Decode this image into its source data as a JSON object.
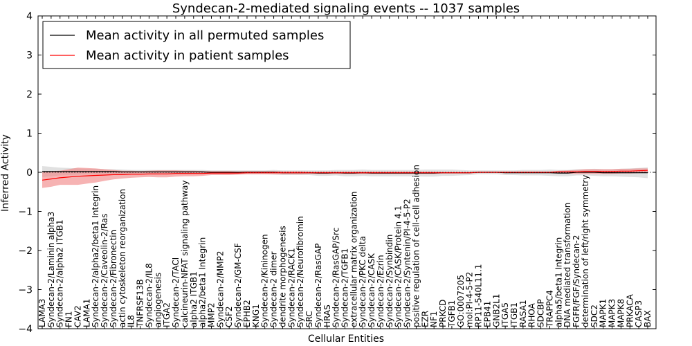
{
  "chart_data": {
    "type": "line",
    "title": "Syndecan-2-mediated signaling events -- 1037 samples",
    "xlabel": "Cellular Entities",
    "ylabel": "Inferred Activity",
    "ylim": [
      -4,
      4
    ],
    "yticks": [
      "4",
      "3",
      "2",
      "1",
      "0",
      "−1",
      "−2",
      "−3",
      "−4"
    ],
    "ytick_values": [
      4,
      3,
      2,
      1,
      0,
      -1,
      -2,
      -3,
      -4
    ],
    "legend_position": "top-left",
    "categories": [
      "LAMA3",
      "Syndecan-2/Laminin alpha3",
      "Syndecan-2/alpha2 ITGB1",
      "FN1",
      "CAV2",
      "LAMA1",
      "Syndecan-2/alpha2/beta1 Integrin",
      "Syndecan-2/Caveolin-2/Ras",
      "Syndecan-2/Fibronectin",
      "actin cytoskeleton reorganization",
      "IL8",
      "TNFRSF13B",
      "Syndecan-2/IL8",
      "angiogenesis",
      "ITGA2",
      "Syndecan-2/TACI",
      "calcineurin-NFAT signaling pathway",
      "alpha2 ITGB1",
      "alpha2/beta1 Integrin",
      "MMP2",
      "Syndecan-2/MMP2",
      "CSF2",
      "Syndecan-2/GM-CSF",
      "EPHB2",
      "KNG1",
      "Syndecan-2/Kininogen",
      "Syndecan-2 dimer",
      "dendrite morphogenesis",
      "Syndecan-2/RACK1",
      "Syndecan-2/Neurofibromin",
      "SRC",
      "Syndecan-2/RasGAP",
      "HRAS",
      "Syndecan-2/RasGAP/Src",
      "Syndecan-2/TGFB1",
      "extracellular matrix organization",
      "Syndecan-2/PKC delta",
      "Syndecan-2/CASK",
      "Syndecan-2/Ezrin",
      "Syndecan-2/Synbindin",
      "Syndecan-2/CASK/Protein 4.1",
      "Syndecan-2/Syntenin/PI-4-5-P2",
      "positive regulation of cell-cell adhesion",
      "EZR",
      "NF1",
      "PRKCD",
      "TGFB1",
      "GO:0007205",
      "mol:PI-4-5-P2",
      "RP11-540L11.1",
      "EPB41",
      "GNB2L1",
      "ITGA5",
      "ITGB1",
      "RASA1",
      "RHOA",
      "SDCBP",
      "TRAPPC4",
      "alpha5/beta1 Integrin",
      "DNA mediated transformation",
      "FGFR/FGF/Syndecan-2",
      "determination of left/right symmetry",
      "SDC2",
      "MAPK1",
      "MAPK3",
      "MAPK8",
      "PRKACA",
      "CASP3",
      "BAX"
    ],
    "series": [
      {
        "name": "Mean activity in all permuted samples",
        "color": "#000000",
        "band_color": "#c8c8c8",
        "values": [
          0.02,
          0.02,
          0.02,
          0.02,
          0.02,
          0.02,
          0.02,
          0.02,
          0.02,
          0.01,
          0.01,
          0.01,
          0.01,
          0.01,
          0.01,
          0.01,
          0.01,
          0.01,
          0.01,
          0.0,
          0.0,
          0.0,
          0.0,
          0.0,
          0.0,
          0.0,
          0.0,
          -0.01,
          -0.01,
          -0.01,
          -0.01,
          -0.02,
          -0.02,
          -0.01,
          -0.02,
          -0.02,
          -0.01,
          -0.02,
          -0.02,
          -0.02,
          -0.02,
          -0.02,
          -0.02,
          -0.02,
          -0.02,
          -0.01,
          -0.01,
          -0.01,
          -0.01,
          0.0,
          0.0,
          0.0,
          -0.01,
          -0.01,
          -0.01,
          -0.01,
          -0.01,
          -0.01,
          -0.02,
          -0.02,
          0.0,
          0.0,
          0.0,
          -0.01,
          -0.01,
          -0.01,
          -0.01,
          -0.01,
          -0.01
        ],
        "spread": [
          0.14,
          0.12,
          0.1,
          0.09,
          0.08,
          0.07,
          0.07,
          0.06,
          0.06,
          0.06,
          0.05,
          0.05,
          0.05,
          0.05,
          0.05,
          0.05,
          0.05,
          0.05,
          0.05,
          0.05,
          0.05,
          0.05,
          0.05,
          0.05,
          0.05,
          0.05,
          0.06,
          0.06,
          0.06,
          0.06,
          0.06,
          0.07,
          0.07,
          0.07,
          0.08,
          0.08,
          0.08,
          0.08,
          0.08,
          0.08,
          0.08,
          0.08,
          0.08,
          0.09,
          0.09,
          0.08,
          0.08,
          0.07,
          0.06,
          0.05,
          0.05,
          0.05,
          0.06,
          0.06,
          0.07,
          0.07,
          0.07,
          0.08,
          0.08,
          0.08,
          0.08,
          0.08,
          0.09,
          0.09,
          0.09,
          0.1,
          0.11,
          0.12,
          0.14
        ]
      },
      {
        "name": "Mean activity in patient samples",
        "color": "#ff0000",
        "band_color": "#f08080",
        "values": [
          -0.2,
          -0.17,
          -0.14,
          -0.12,
          -0.1,
          -0.09,
          -0.08,
          -0.07,
          -0.06,
          -0.06,
          -0.05,
          -0.05,
          -0.04,
          -0.04,
          -0.04,
          -0.03,
          -0.03,
          -0.03,
          -0.03,
          -0.02,
          -0.02,
          -0.02,
          -0.02,
          -0.01,
          -0.01,
          -0.01,
          -0.01,
          -0.01,
          -0.01,
          -0.01,
          -0.01,
          -0.01,
          -0.01,
          -0.01,
          -0.01,
          -0.01,
          -0.01,
          -0.01,
          -0.01,
          -0.01,
          -0.01,
          -0.01,
          -0.01,
          -0.01,
          -0.01,
          -0.01,
          -0.01,
          -0.01,
          -0.01,
          0.0,
          0.0,
          0.0,
          0.0,
          0.0,
          0.0,
          0.0,
          0.0,
          0.0,
          0.01,
          0.01,
          0.01,
          0.02,
          0.02,
          0.02,
          0.02,
          0.03,
          0.03,
          0.04,
          0.05
        ],
        "spread": [
          0.2,
          0.2,
          0.18,
          0.2,
          0.22,
          0.2,
          0.18,
          0.15,
          0.12,
          0.1,
          0.09,
          0.08,
          0.08,
          0.09,
          0.09,
          0.08,
          0.07,
          0.07,
          0.06,
          0.05,
          0.05,
          0.05,
          0.04,
          0.04,
          0.04,
          0.04,
          0.04,
          0.04,
          0.04,
          0.04,
          0.03,
          0.03,
          0.03,
          0.03,
          0.03,
          0.03,
          0.03,
          0.03,
          0.03,
          0.03,
          0.03,
          0.03,
          0.03,
          0.03,
          0.03,
          0.02,
          0.02,
          0.02,
          0.02,
          0.02,
          0.02,
          0.02,
          0.02,
          0.02,
          0.02,
          0.02,
          0.02,
          0.02,
          0.03,
          0.04,
          0.05,
          0.06,
          0.06,
          0.06,
          0.06,
          0.06,
          0.06,
          0.06,
          0.05
        ]
      }
    ]
  }
}
